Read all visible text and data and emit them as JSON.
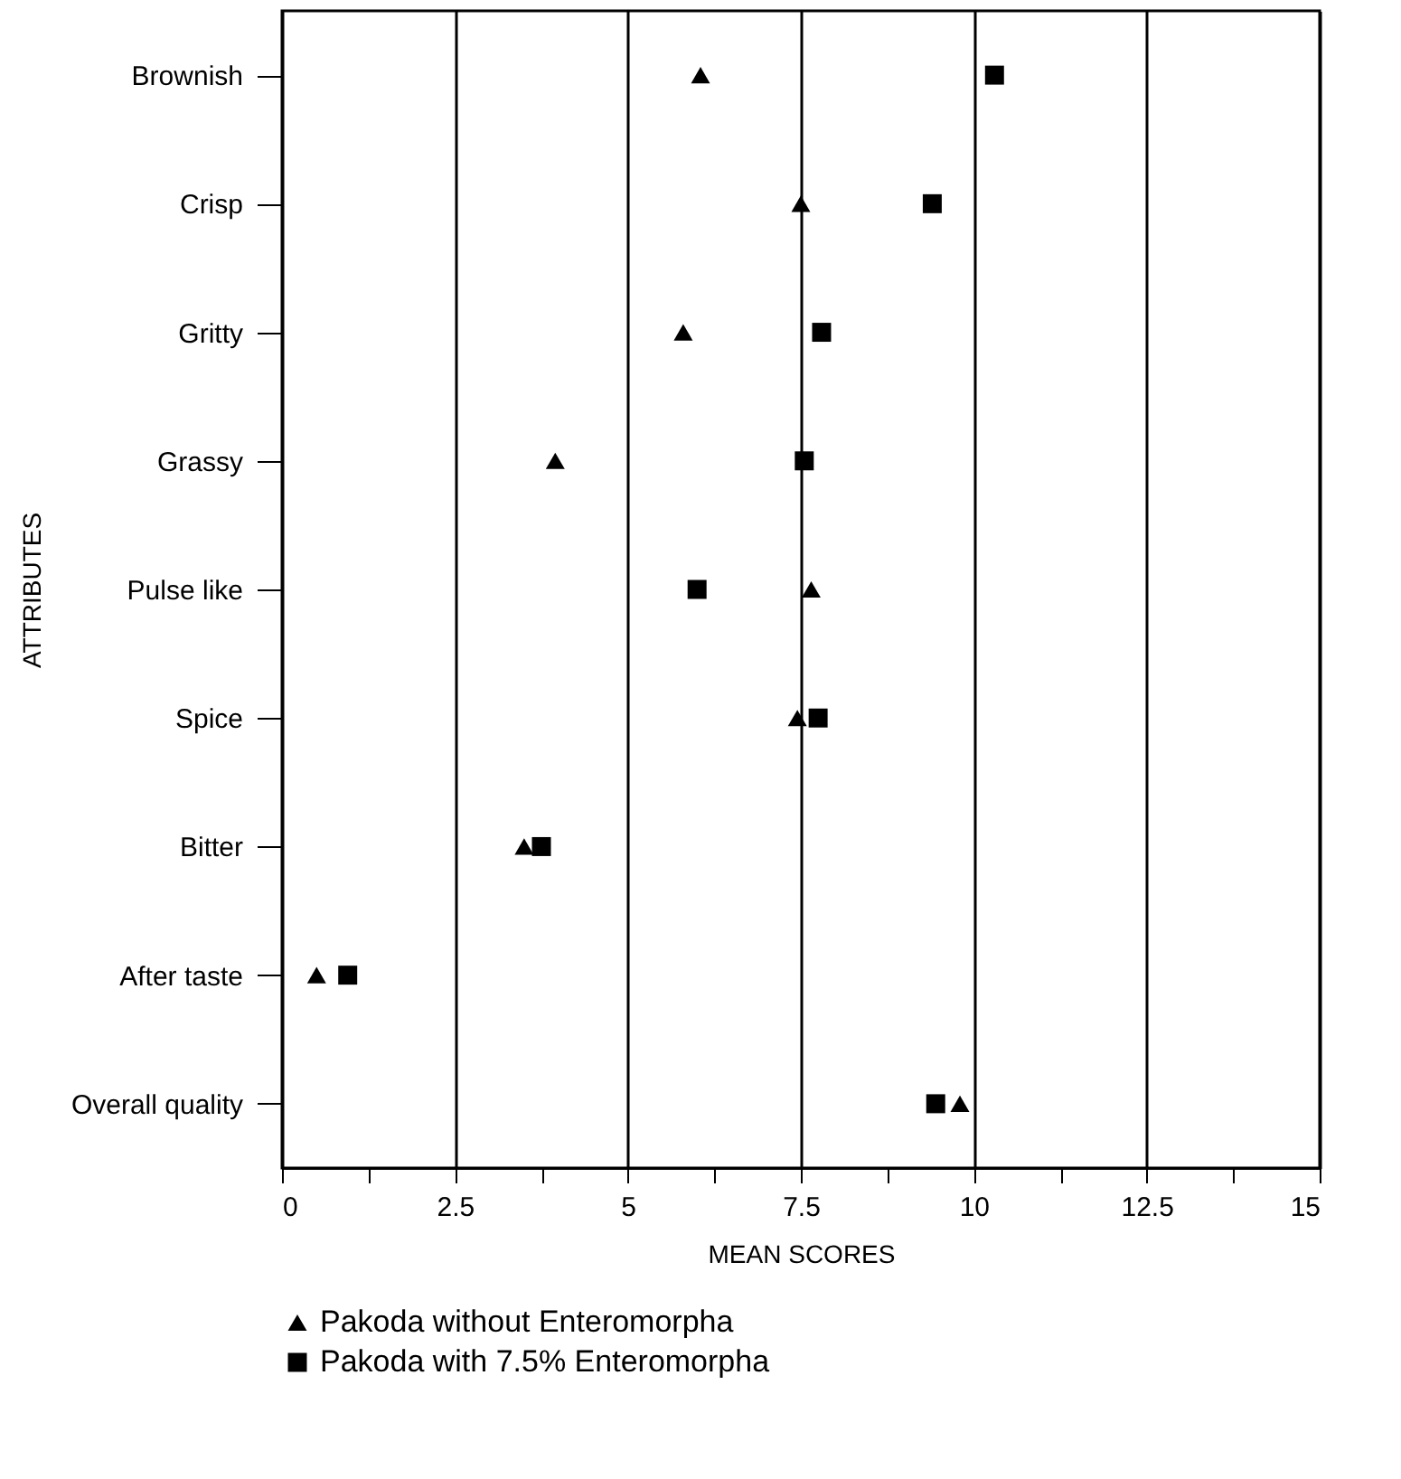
{
  "chart_data": {
    "type": "scatter",
    "xlabel": "MEAN SCORES",
    "ylabel": "ATTRIBUTES",
    "orientation": "horizontal",
    "categories": [
      "Brownish",
      "Crisp",
      "Gritty",
      "Grassy",
      "Pulse like",
      "Spice",
      "Bitter",
      "After taste",
      "Overall quality"
    ],
    "series": [
      {
        "name": "Pakoda without Enteromorpha",
        "color": "#000000",
        "marker": "triangle",
        "values": [
          6.05,
          7.5,
          5.8,
          3.95,
          7.65,
          7.45,
          3.5,
          0.5,
          9.8
        ]
      },
      {
        "name": "Pakoda with 7.5% Enteromorpha",
        "color": "#000000",
        "marker": "square",
        "values": [
          10.3,
          9.4,
          7.8,
          7.55,
          6.0,
          7.75,
          3.75,
          0.95,
          9.45
        ]
      }
    ],
    "xlim": [
      0,
      15
    ],
    "xticks": [
      0,
      {
        "value": 1.25,
        "label": null
      },
      2.5,
      {
        "value": 3.75,
        "label": null
      },
      5,
      {
        "value": 6.25,
        "label": null
      },
      7.5,
      {
        "value": 8.75,
        "label": null
      },
      10,
      {
        "value": 11.25,
        "label": null
      },
      12.5,
      {
        "value": 13.75,
        "label": null
      },
      15
    ],
    "grid": "x",
    "legend": "bottom left"
  }
}
